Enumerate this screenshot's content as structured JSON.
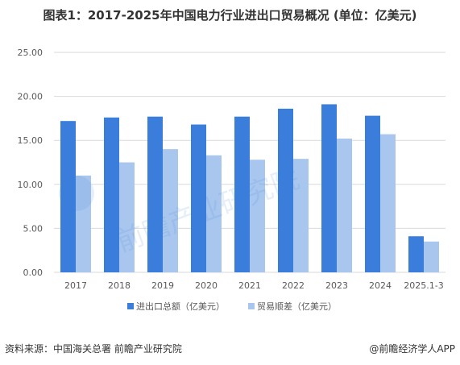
{
  "title": "图表1：2017-2025年中国电力行业进出口贸易概况 (单位：亿美元)",
  "source": "资料来源：中国海关总署 前瞻产业研究院",
  "brand": "@前瞻经济学人APP",
  "watermark": "前瞻产业研究院",
  "colors": {
    "series1": "#3A7DDA",
    "series2": "#A9C7EE",
    "grid": "#D9D9D9",
    "text": "#595959"
  },
  "chart_data": {
    "type": "bar",
    "categories": [
      "2017",
      "2018",
      "2019",
      "2020",
      "2021",
      "2022",
      "2023",
      "2024",
      "2025.1-3"
    ],
    "series": [
      {
        "name": "进出口总额（亿美元）",
        "values": [
          17.2,
          17.6,
          17.7,
          16.8,
          17.7,
          18.6,
          19.1,
          17.8,
          4.1
        ]
      },
      {
        "name": "贸易顺差（亿美元）",
        "values": [
          11.0,
          12.5,
          14.0,
          13.3,
          12.8,
          12.9,
          15.2,
          15.7,
          3.5
        ]
      }
    ],
    "ylim": [
      0,
      25
    ],
    "yticks": [
      "0.00",
      "5.00",
      "10.00",
      "15.00",
      "20.00",
      "25.00"
    ],
    "grid": true,
    "legend": "bottom"
  }
}
